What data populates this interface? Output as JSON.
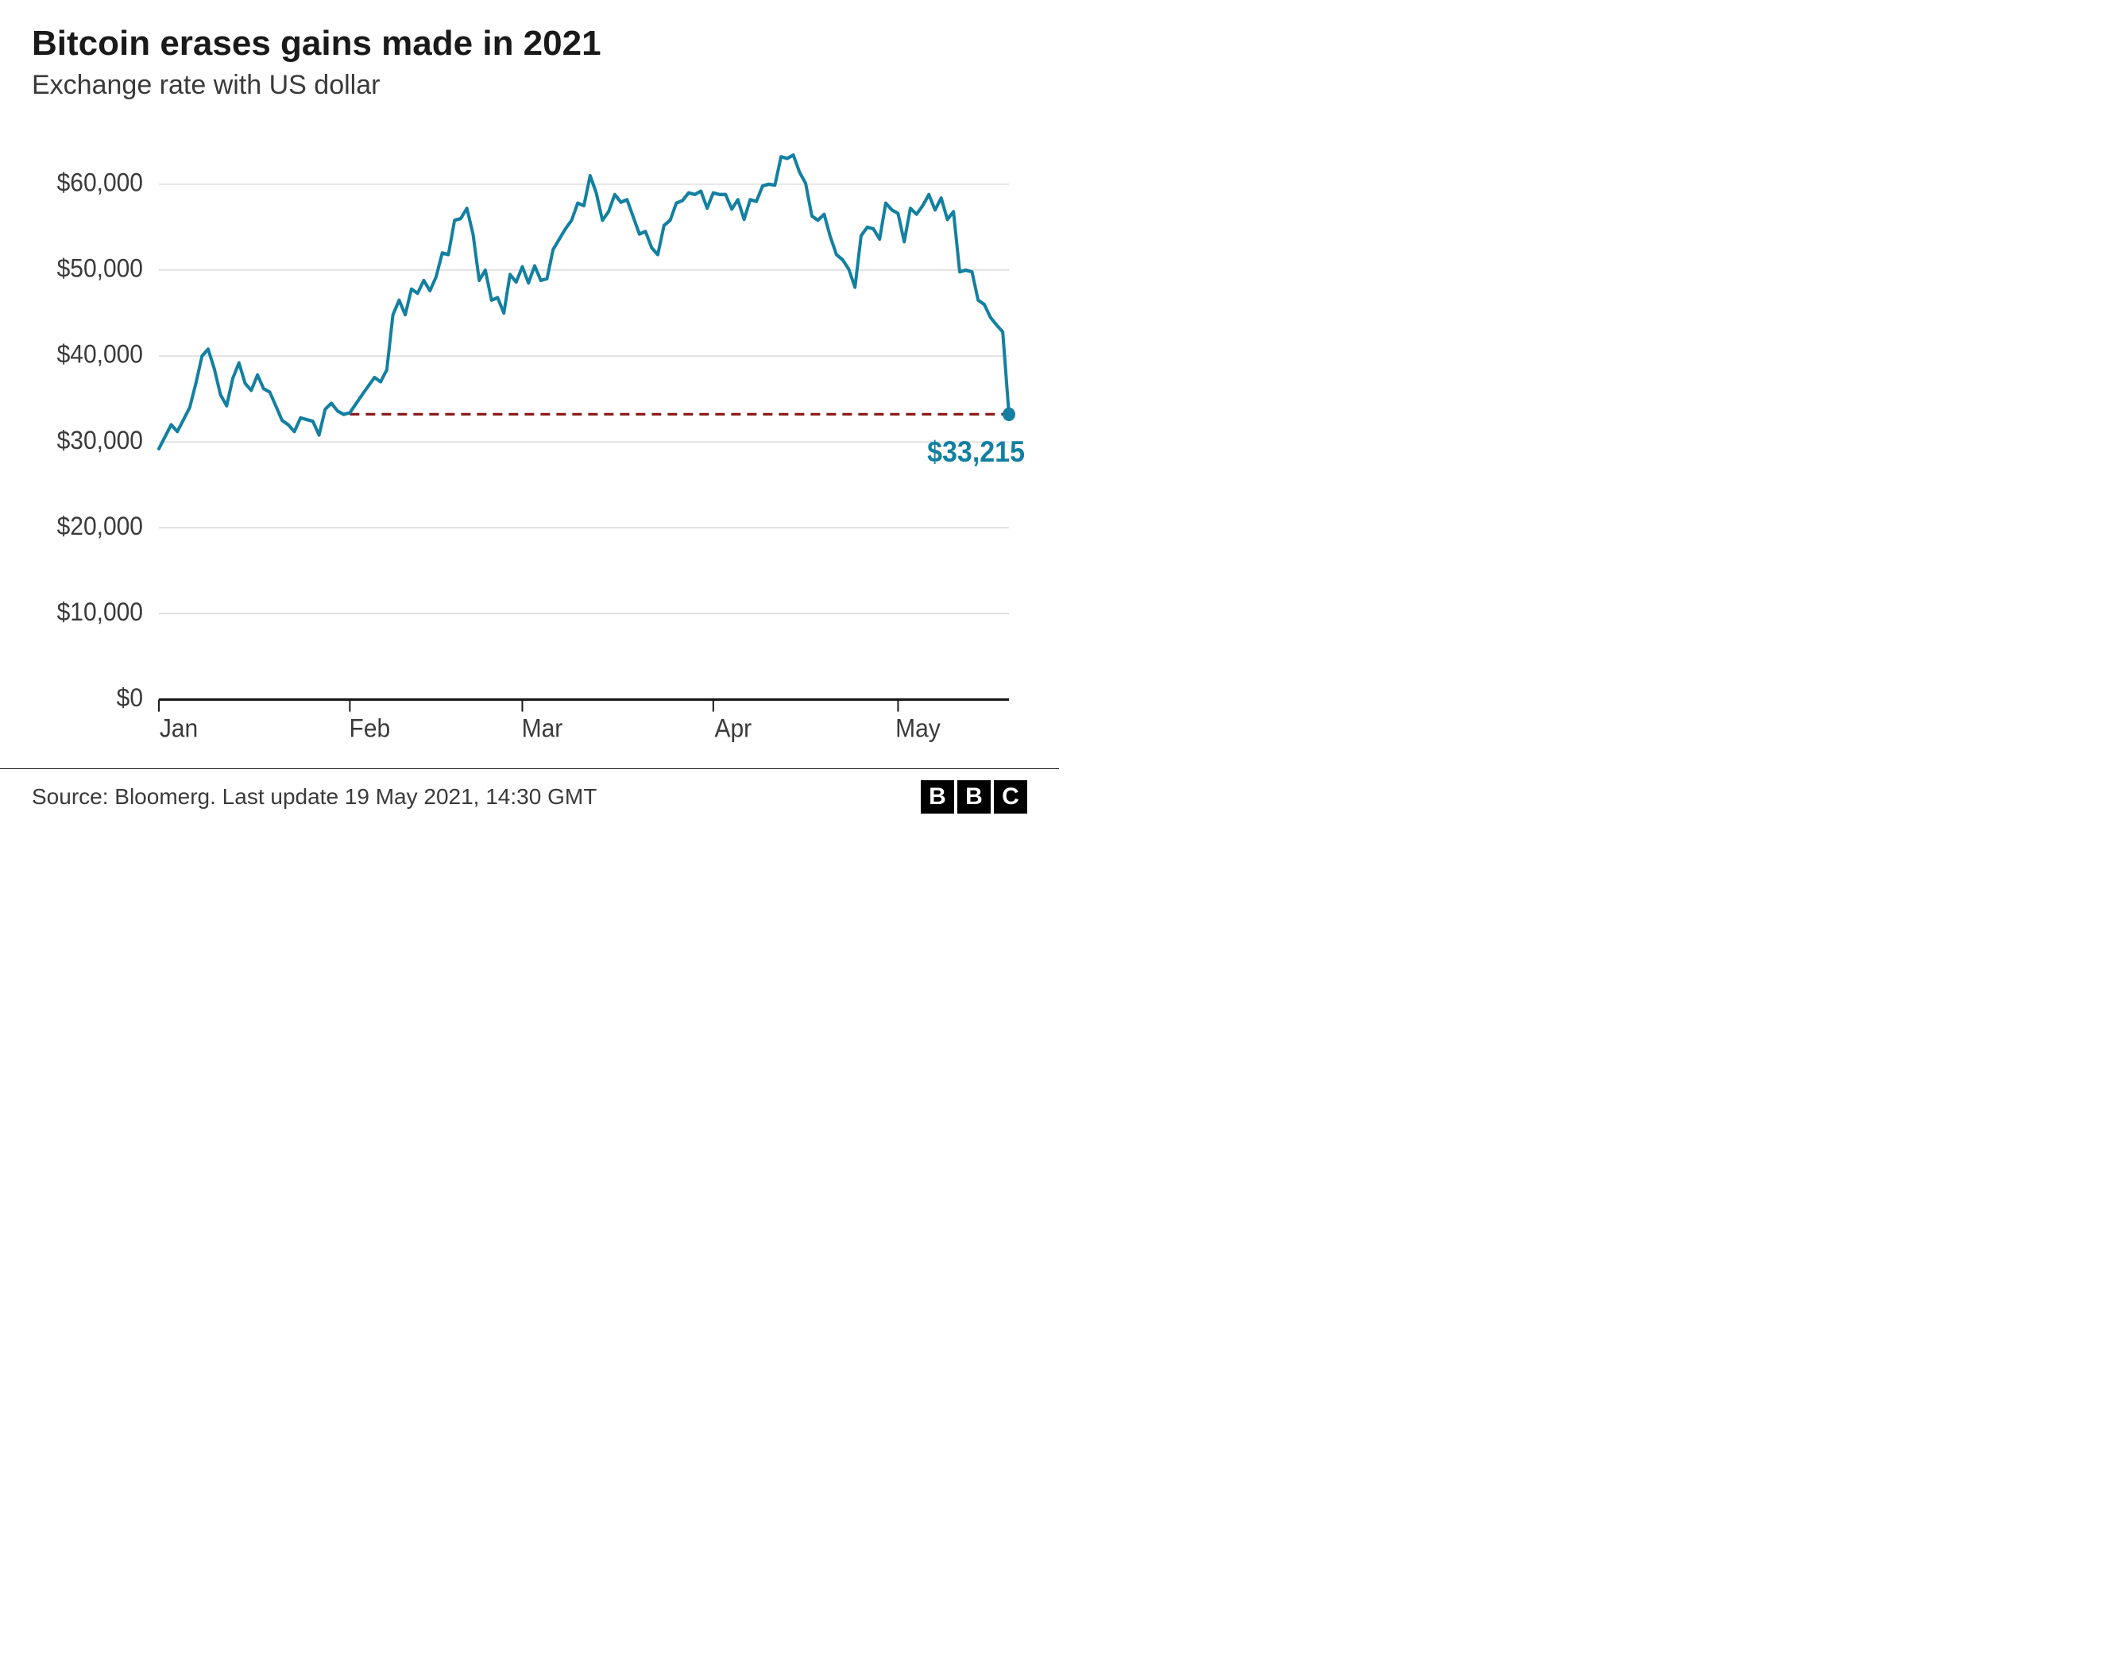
{
  "title": "Bitcoin erases gains made in 2021",
  "subtitle": "Exchange rate with US dollar",
  "source": "Source: Bloomerg. Last update 19 May 2021, 14:30 GMT",
  "logo_letters": [
    "B",
    "B",
    "C"
  ],
  "chart": {
    "type": "line",
    "background_color": "#ffffff",
    "grid_color": "#cccccc",
    "axis_color": "#1a1a1a",
    "line_color": "#1380a1",
    "line_width": 4,
    "reference_line_color": "#8b1a1a",
    "reference_value": 33215,
    "end_value_label": "$33,215",
    "end_label_color": "#1380a1",
    "end_dot_color": "#1380a1",
    "ylim": [
      0,
      65000
    ],
    "yticks": [
      0,
      10000,
      20000,
      30000,
      40000,
      50000,
      60000
    ],
    "ytick_labels": [
      "$0",
      "$10,000",
      "$20,000",
      "$30,000",
      "$40,000",
      "$50,000",
      "$60,000"
    ],
    "xtick_labels": [
      "Jan",
      "Feb",
      "Mar",
      "Apr",
      "May"
    ],
    "xtick_positions": [
      0,
      31,
      59,
      90,
      120
    ],
    "x_domain": [
      0,
      138
    ],
    "label_fontsize": 30,
    "title_fontsize": 44,
    "subtitle_fontsize": 34,
    "series": [
      {
        "x": 0,
        "y": 29200
      },
      {
        "x": 2,
        "y": 32000
      },
      {
        "x": 3,
        "y": 31200
      },
      {
        "x": 5,
        "y": 34000
      },
      {
        "x": 6,
        "y": 36800
      },
      {
        "x": 7,
        "y": 40000
      },
      {
        "x": 8,
        "y": 40800
      },
      {
        "x": 9,
        "y": 38500
      },
      {
        "x": 10,
        "y": 35500
      },
      {
        "x": 11,
        "y": 34200
      },
      {
        "x": 12,
        "y": 37400
      },
      {
        "x": 13,
        "y": 39200
      },
      {
        "x": 14,
        "y": 36800
      },
      {
        "x": 15,
        "y": 36000
      },
      {
        "x": 16,
        "y": 37800
      },
      {
        "x": 17,
        "y": 36200
      },
      {
        "x": 18,
        "y": 35800
      },
      {
        "x": 20,
        "y": 32500
      },
      {
        "x": 21,
        "y": 32000
      },
      {
        "x": 22,
        "y": 31200
      },
      {
        "x": 23,
        "y": 32800
      },
      {
        "x": 25,
        "y": 32400
      },
      {
        "x": 26,
        "y": 30800
      },
      {
        "x": 27,
        "y": 33800
      },
      {
        "x": 28,
        "y": 34500
      },
      {
        "x": 29,
        "y": 33600
      },
      {
        "x": 30,
        "y": 33200
      },
      {
        "x": 31,
        "y": 33400
      },
      {
        "x": 33,
        "y": 35500
      },
      {
        "x": 35,
        "y": 37500
      },
      {
        "x": 36,
        "y": 37000
      },
      {
        "x": 37,
        "y": 38400
      },
      {
        "x": 38,
        "y": 44800
      },
      {
        "x": 39,
        "y": 46500
      },
      {
        "x": 40,
        "y": 44800
      },
      {
        "x": 41,
        "y": 47800
      },
      {
        "x": 42,
        "y": 47300
      },
      {
        "x": 43,
        "y": 48800
      },
      {
        "x": 44,
        "y": 47600
      },
      {
        "x": 45,
        "y": 49200
      },
      {
        "x": 46,
        "y": 52000
      },
      {
        "x": 47,
        "y": 51800
      },
      {
        "x": 48,
        "y": 55800
      },
      {
        "x": 49,
        "y": 56000
      },
      {
        "x": 50,
        "y": 57200
      },
      {
        "x": 51,
        "y": 54200
      },
      {
        "x": 52,
        "y": 48800
      },
      {
        "x": 53,
        "y": 50000
      },
      {
        "x": 54,
        "y": 46500
      },
      {
        "x": 55,
        "y": 46800
      },
      {
        "x": 56,
        "y": 45000
      },
      {
        "x": 57,
        "y": 49500
      },
      {
        "x": 58,
        "y": 48600
      },
      {
        "x": 59,
        "y": 50400
      },
      {
        "x": 60,
        "y": 48500
      },
      {
        "x": 61,
        "y": 50500
      },
      {
        "x": 62,
        "y": 48800
      },
      {
        "x": 63,
        "y": 49000
      },
      {
        "x": 64,
        "y": 52400
      },
      {
        "x": 66,
        "y": 54800
      },
      {
        "x": 67,
        "y": 55800
      },
      {
        "x": 68,
        "y": 57800
      },
      {
        "x": 69,
        "y": 57500
      },
      {
        "x": 70,
        "y": 61000
      },
      {
        "x": 71,
        "y": 59000
      },
      {
        "x": 72,
        "y": 55800
      },
      {
        "x": 73,
        "y": 56800
      },
      {
        "x": 74,
        "y": 58800
      },
      {
        "x": 75,
        "y": 57900
      },
      {
        "x": 76,
        "y": 58200
      },
      {
        "x": 78,
        "y": 54200
      },
      {
        "x": 79,
        "y": 54500
      },
      {
        "x": 80,
        "y": 52600
      },
      {
        "x": 81,
        "y": 51800
      },
      {
        "x": 82,
        "y": 55200
      },
      {
        "x": 83,
        "y": 55800
      },
      {
        "x": 84,
        "y": 57800
      },
      {
        "x": 85,
        "y": 58100
      },
      {
        "x": 86,
        "y": 59000
      },
      {
        "x": 87,
        "y": 58800
      },
      {
        "x": 88,
        "y": 59200
      },
      {
        "x": 89,
        "y": 57200
      },
      {
        "x": 90,
        "y": 59000
      },
      {
        "x": 91,
        "y": 58800
      },
      {
        "x": 92,
        "y": 58800
      },
      {
        "x": 93,
        "y": 57100
      },
      {
        "x": 94,
        "y": 58200
      },
      {
        "x": 95,
        "y": 55900
      },
      {
        "x": 96,
        "y": 58200
      },
      {
        "x": 97,
        "y": 58000
      },
      {
        "x": 98,
        "y": 59800
      },
      {
        "x": 99,
        "y": 60000
      },
      {
        "x": 100,
        "y": 59900
      },
      {
        "x": 101,
        "y": 63200
      },
      {
        "x": 102,
        "y": 63000
      },
      {
        "x": 103,
        "y": 63400
      },
      {
        "x": 104,
        "y": 61400
      },
      {
        "x": 105,
        "y": 60100
      },
      {
        "x": 106,
        "y": 56300
      },
      {
        "x": 107,
        "y": 55800
      },
      {
        "x": 108,
        "y": 56500
      },
      {
        "x": 109,
        "y": 53900
      },
      {
        "x": 110,
        "y": 51800
      },
      {
        "x": 111,
        "y": 51200
      },
      {
        "x": 112,
        "y": 50100
      },
      {
        "x": 113,
        "y": 48000
      },
      {
        "x": 114,
        "y": 54000
      },
      {
        "x": 115,
        "y": 55000
      },
      {
        "x": 116,
        "y": 54800
      },
      {
        "x": 117,
        "y": 53600
      },
      {
        "x": 118,
        "y": 57800
      },
      {
        "x": 119,
        "y": 57000
      },
      {
        "x": 120,
        "y": 56600
      },
      {
        "x": 121,
        "y": 53300
      },
      {
        "x": 122,
        "y": 57200
      },
      {
        "x": 123,
        "y": 56500
      },
      {
        "x": 124,
        "y": 57500
      },
      {
        "x": 125,
        "y": 58800
      },
      {
        "x": 126,
        "y": 57000
      },
      {
        "x": 127,
        "y": 58400
      },
      {
        "x": 128,
        "y": 55900
      },
      {
        "x": 129,
        "y": 56800
      },
      {
        "x": 130,
        "y": 49800
      },
      {
        "x": 131,
        "y": 50000
      },
      {
        "x": 132,
        "y": 49800
      },
      {
        "x": 133,
        "y": 46500
      },
      {
        "x": 134,
        "y": 46000
      },
      {
        "x": 135,
        "y": 44500
      },
      {
        "x": 136,
        "y": 43600
      },
      {
        "x": 137,
        "y": 42800
      },
      {
        "x": 138,
        "y": 33215
      }
    ]
  }
}
